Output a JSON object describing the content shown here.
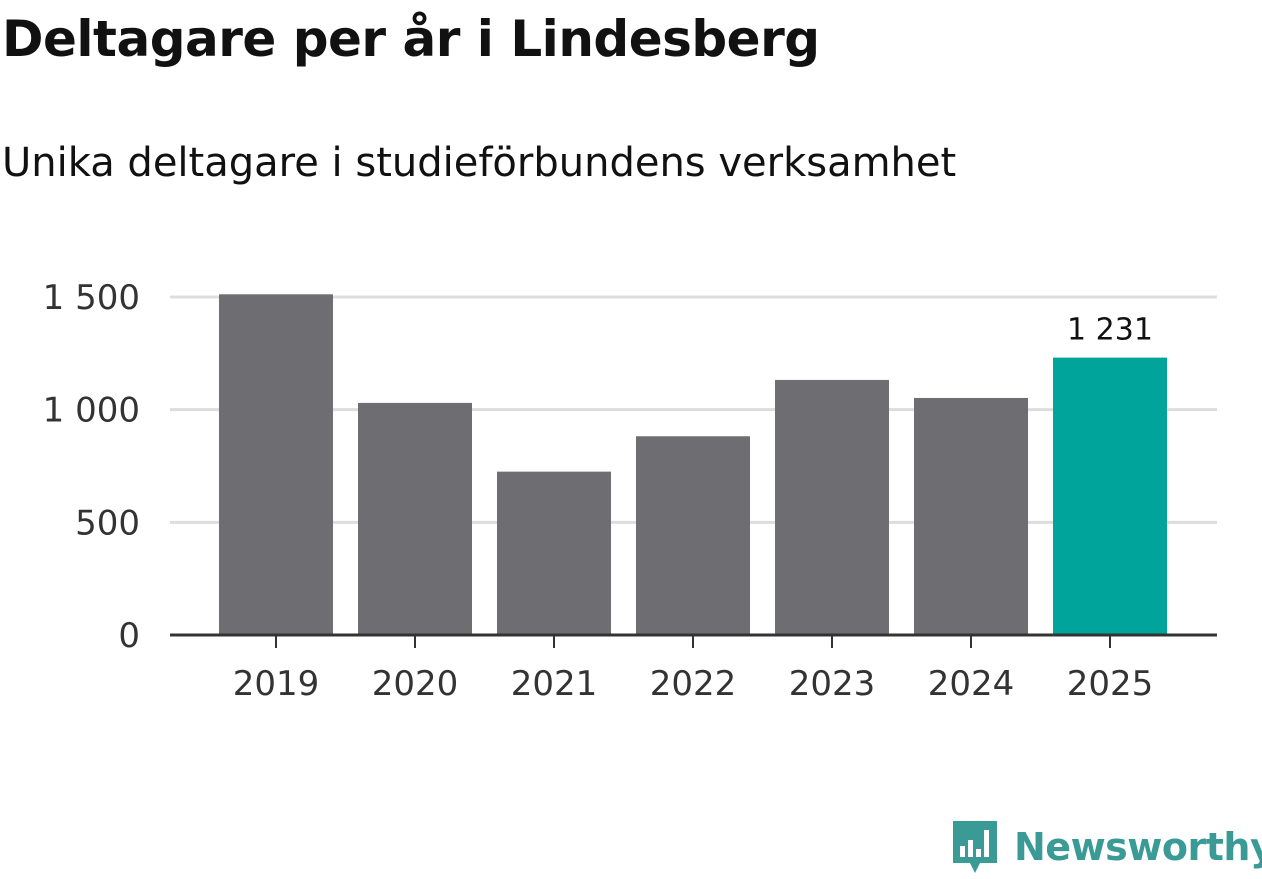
{
  "title": "Deltagare per år i Lindesberg",
  "subtitle": "Unika deltagare i studieförbundens verksamhet",
  "chart_data": {
    "type": "bar",
    "title": "Deltagare per år i Lindesberg",
    "subtitle": "Unika deltagare i studieförbundens verksamhet",
    "categories": [
      "2019",
      "2020",
      "2021",
      "2022",
      "2023",
      "2024",
      "2025"
    ],
    "values": [
      1512,
      1030,
      725,
      882,
      1132,
      1052,
      1231
    ],
    "ylim": [
      0,
      1500
    ],
    "yticks": [
      0,
      500,
      1000,
      1500
    ],
    "ytick_labels": [
      "0",
      "500",
      "1 000",
      "1 500"
    ],
    "grid": true,
    "highlight_index": 6,
    "highlight_label": "1 231",
    "colors": {
      "bar": "#6e6d72",
      "highlight": "#00a49a",
      "grid": "#dddddd",
      "axis": "#333333",
      "tick_text": "#333333"
    }
  },
  "logo": {
    "text": "Newsworthy",
    "icon": "newsworthy-logo-icon",
    "color": "#3a9b96"
  }
}
